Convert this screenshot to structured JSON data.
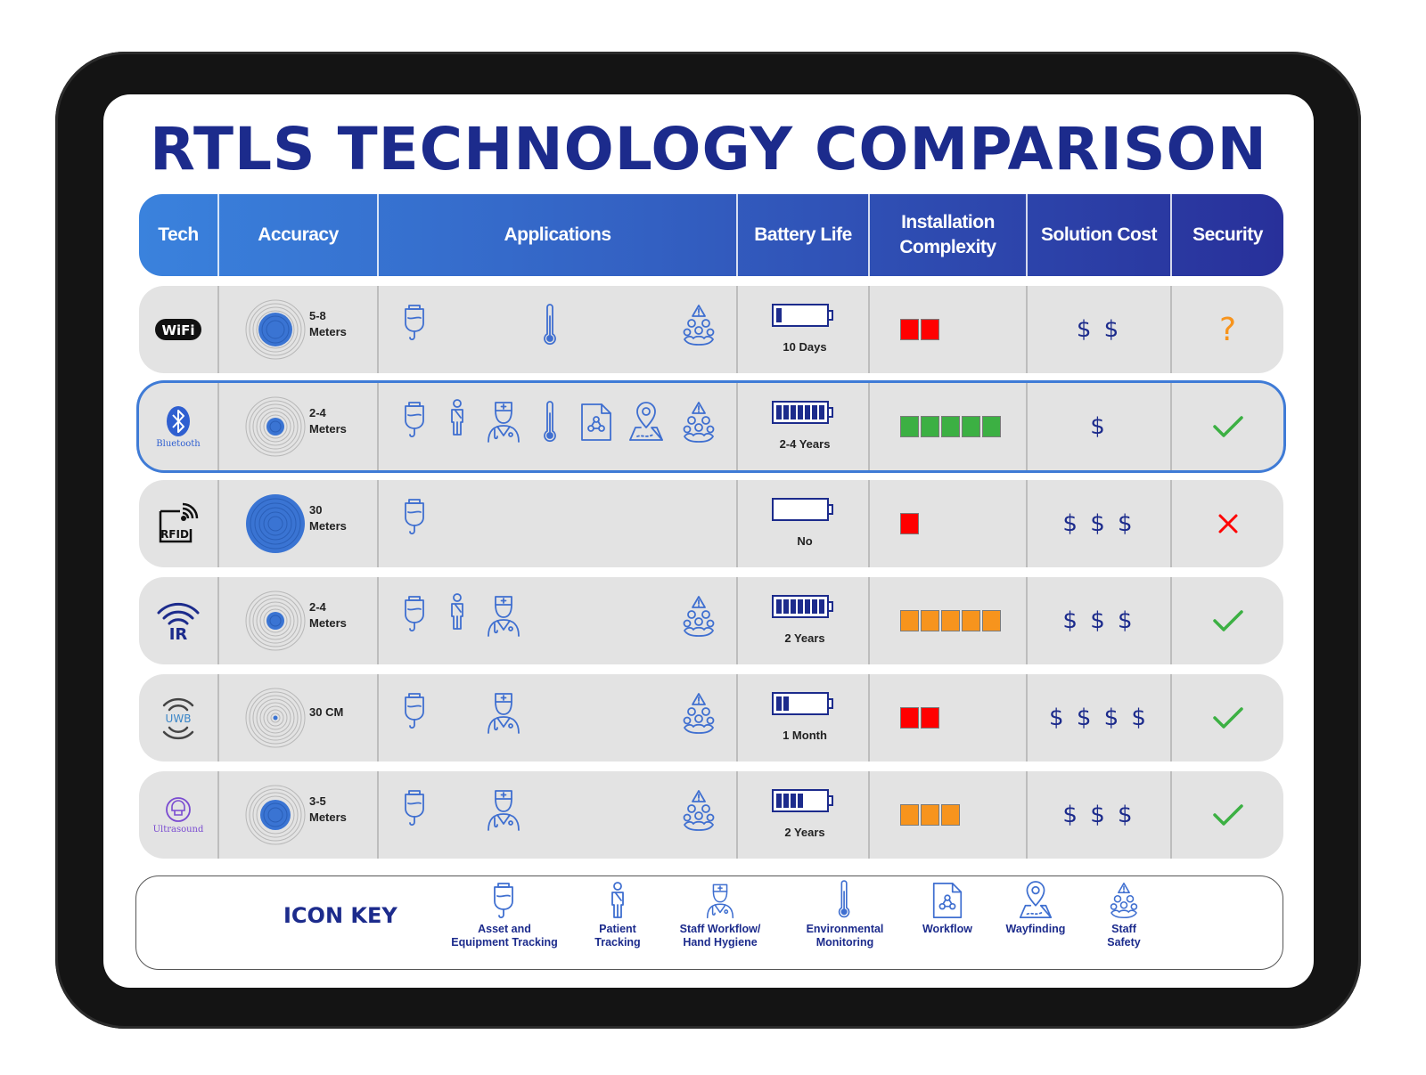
{
  "title": "RTLS TECHNOLOGY COMPARISON",
  "headers": {
    "tech": "Tech",
    "accuracy": "Accuracy",
    "applications": "Applications",
    "battery": "Battery Life",
    "installation": "Installation Complexity",
    "cost": "Solution Cost",
    "security": "Security"
  },
  "colors": {
    "title": "#1c2b8c",
    "header_start": "#3a82dd",
    "header_end": "#28309a",
    "row_bg": "#e3e3e3",
    "icon_blue": "#3f6fd0",
    "red": "#ff0000",
    "green": "#3cb043",
    "orange": "#f7941d",
    "battery_fill": "#1c2b8c"
  },
  "rows": [
    {
      "tech": "WiFi",
      "accuracy": [
        "5-8",
        "Meters"
      ],
      "battery": "10 Days",
      "cost": "$ $",
      "security": "?"
    },
    {
      "tech": "Bluetooth",
      "accuracy": [
        "2-4",
        "Meters"
      ],
      "battery": "2-4 Years",
      "cost": "$",
      "security": "check"
    },
    {
      "tech": "RFID",
      "accuracy": [
        "30",
        "Meters"
      ],
      "battery": "No",
      "cost": "$ $ $",
      "security": "cross"
    },
    {
      "tech": "IR",
      "accuracy": [
        "2-4",
        "Meters"
      ],
      "battery": "2 Years",
      "cost": "$ $ $",
      "security": "check"
    },
    {
      "tech": "UWB",
      "accuracy": [
        "30 CM",
        ""
      ],
      "battery": "1 Month",
      "cost": "$ $ $ $",
      "security": "check"
    },
    {
      "tech": "Ultrasound",
      "accuracy": [
        "3-5",
        "Meters"
      ],
      "battery": "2 Years",
      "cost": "$ $ $",
      "security": "check"
    }
  ],
  "icon_key": {
    "title": "ICON KEY",
    "items": [
      "Asset and\nEquipment Tracking",
      "Patient\nTracking",
      "Staff Workflow/\nHand Hygiene",
      "Environmental\nMonitoring",
      "Workflow",
      "Wayfinding",
      "Staff\nSafety"
    ]
  }
}
